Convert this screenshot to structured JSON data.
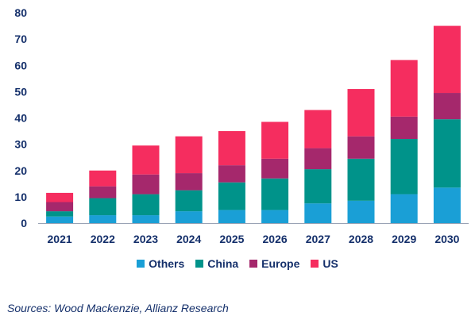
{
  "chart_data": {
    "type": "bar",
    "stacked": true,
    "categories": [
      "2021",
      "2022",
      "2023",
      "2024",
      "2025",
      "2026",
      "2027",
      "2028",
      "2029",
      "2030"
    ],
    "series": [
      {
        "name": "Others",
        "color": "#1a9fd6",
        "values": [
          2.5,
          3,
          3,
          4.5,
          5,
          5,
          7.5,
          8.5,
          11,
          13.5
        ]
      },
      {
        "name": "China",
        "color": "#00938a",
        "values": [
          2,
          6.5,
          8,
          8,
          10.5,
          12,
          13,
          16,
          21,
          26
        ]
      },
      {
        "name": "Europe",
        "color": "#a5286c",
        "values": [
          3.5,
          4.5,
          7.5,
          6.5,
          6.5,
          7.5,
          8,
          8.5,
          8.5,
          10
        ]
      },
      {
        "name": "US",
        "color": "#f52d5f",
        "values": [
          3.5,
          6,
          11,
          14,
          13,
          14,
          14.5,
          18,
          21.5,
          25.5
        ]
      }
    ],
    "ylim": [
      0,
      80
    ],
    "yticks": [
      0,
      10,
      20,
      30,
      40,
      50,
      60,
      70,
      80
    ],
    "grid": false,
    "legend_position": "bottom-center",
    "xlabel": "",
    "ylabel": ""
  },
  "source_note": "Sources: Wood Mackenzie, Allianz Research"
}
